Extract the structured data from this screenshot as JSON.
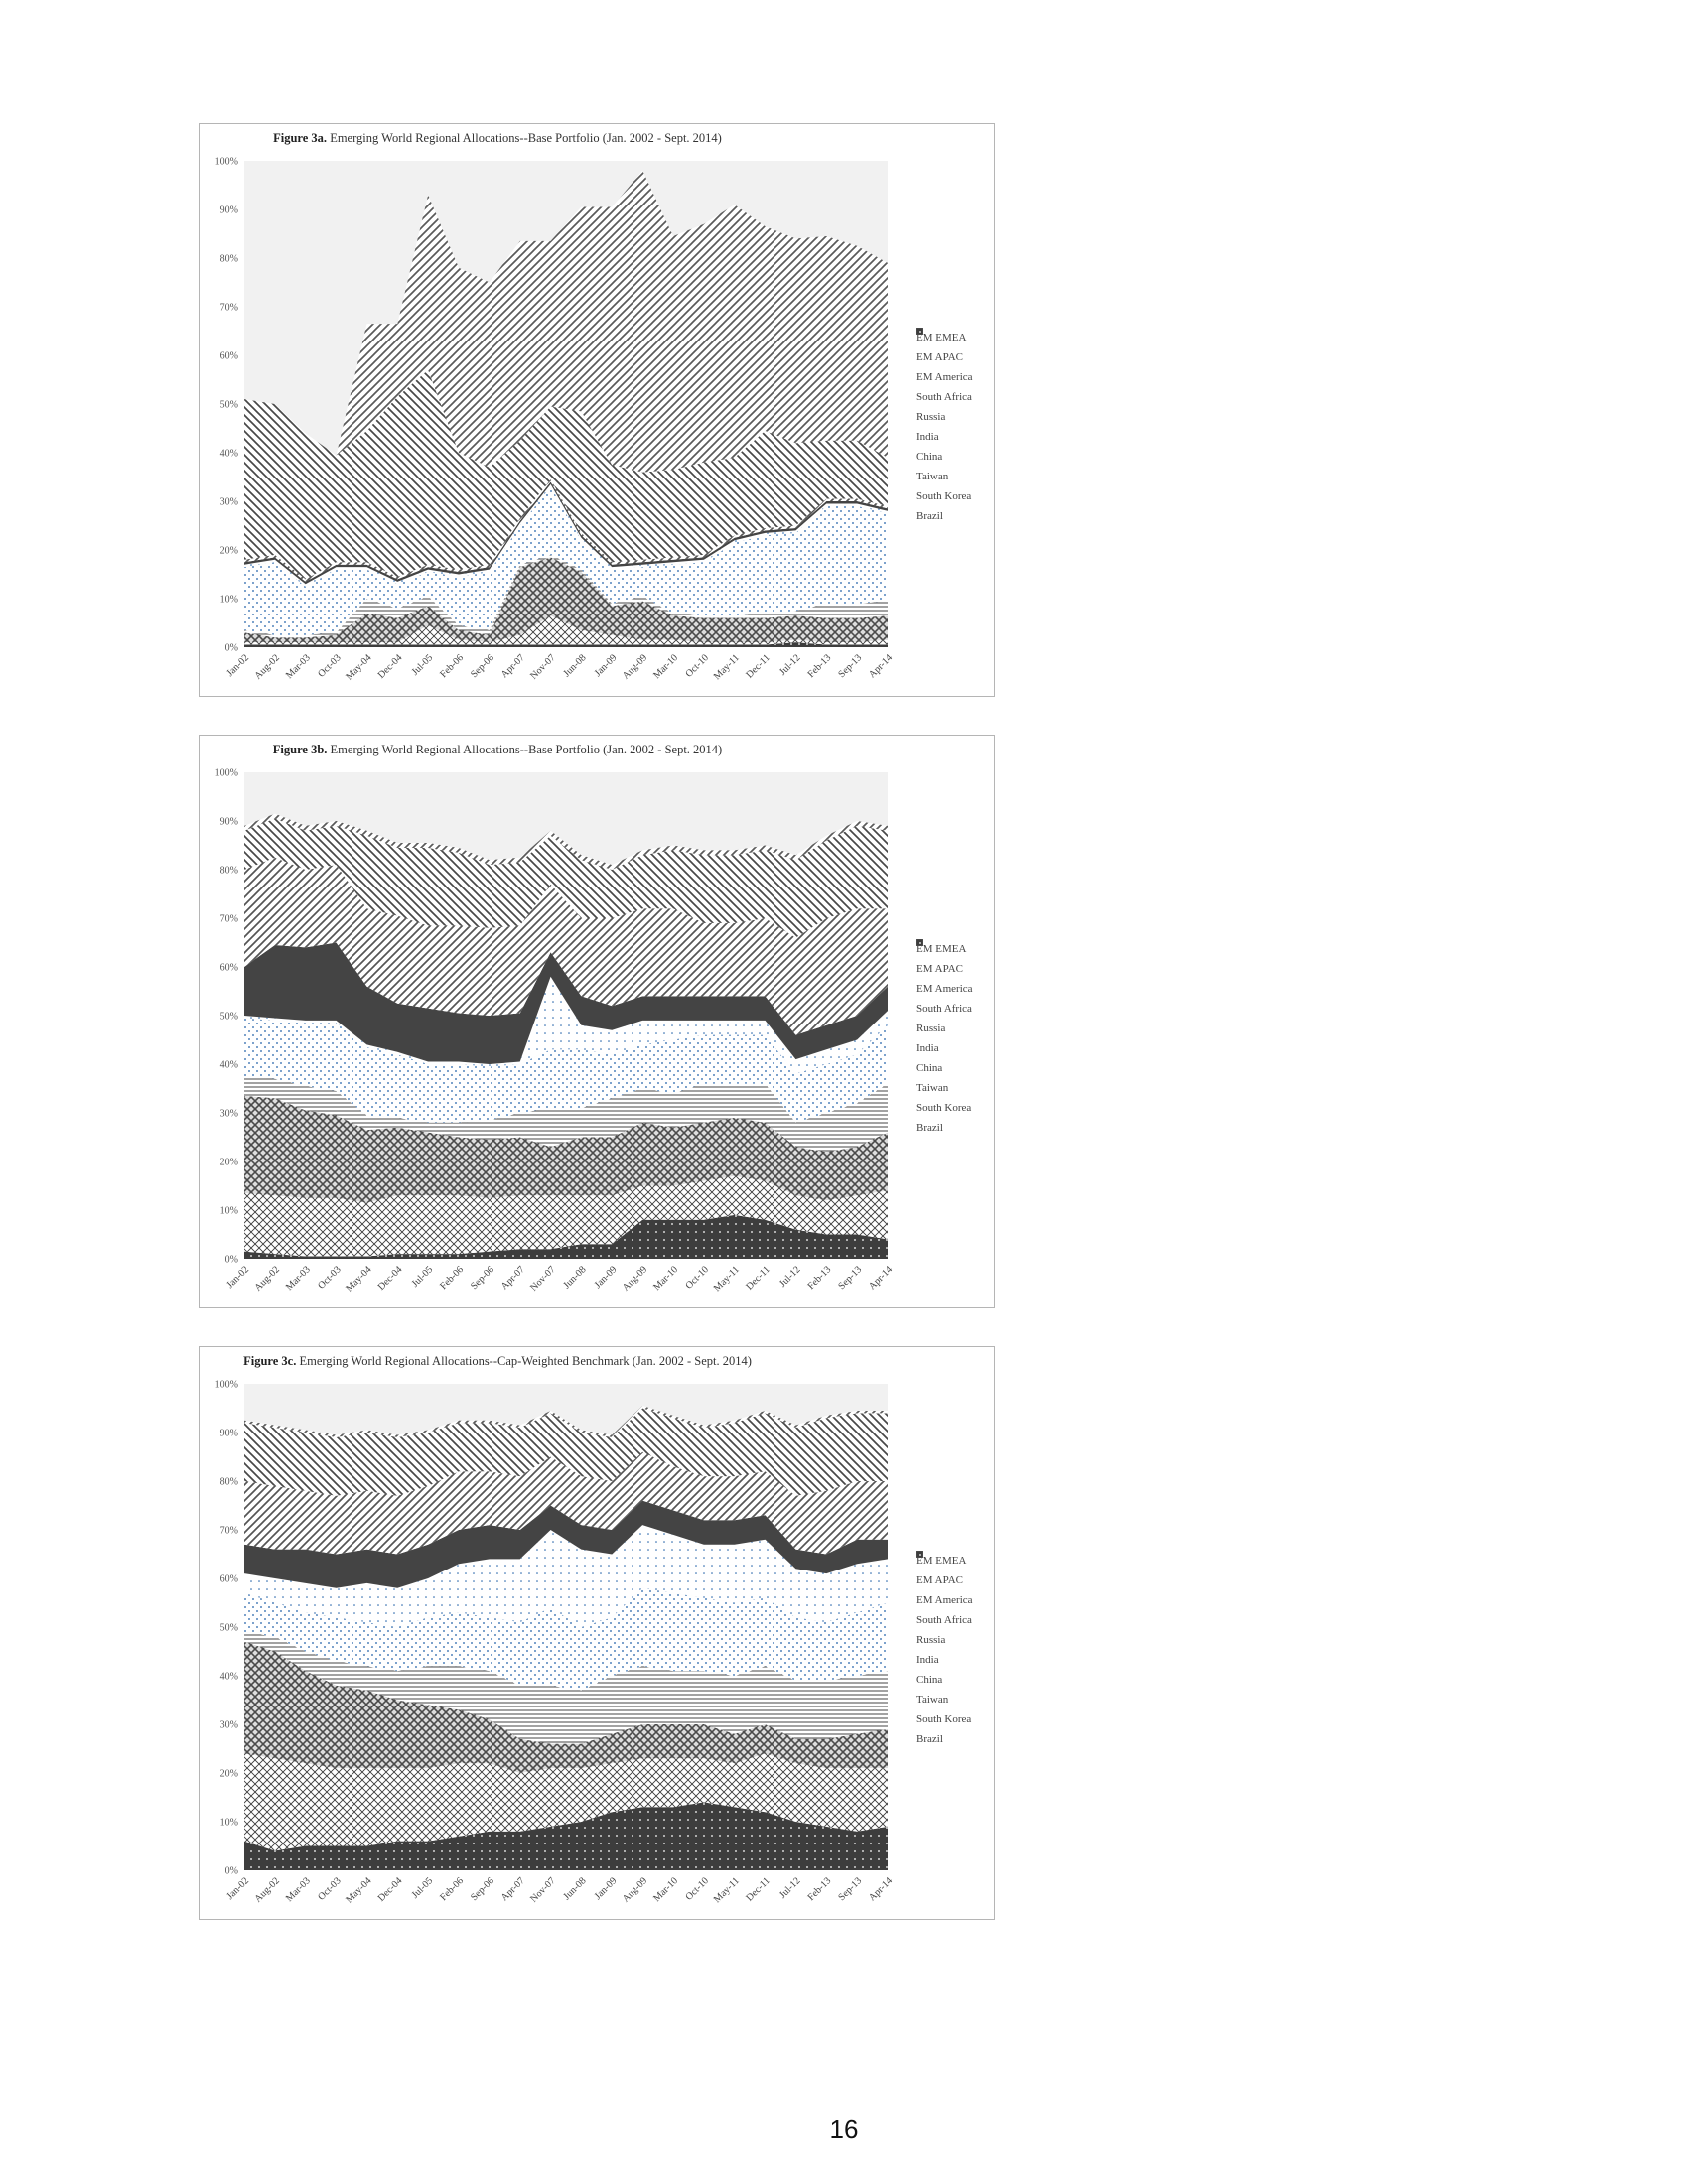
{
  "page_number": "16",
  "chart_data": [
    {
      "id": "3a",
      "type": "area",
      "stacked": true,
      "title_bold": "Figure 3a.",
      "title": "Emerging World Regional Allocations--Base Portfolio (Jan. 2002 - Sept. 2014)",
      "ylim": [
        0,
        100
      ],
      "y_ticks": [
        "0%",
        "10%",
        "20%",
        "30%",
        "40%",
        "50%",
        "60%",
        "70%",
        "80%",
        "90%",
        "100%"
      ],
      "x_tick_labels": [
        "Jan-02",
        "Aug-02",
        "Mar-03",
        "Oct-03",
        "May-04",
        "Dec-04",
        "Jul-05",
        "Feb-06",
        "Sep-06",
        "Apr-07",
        "Nov-07",
        "Jun-08",
        "Jan-09",
        "Aug-09",
        "Mar-10",
        "Oct-10",
        "May-11",
        "Dec-11",
        "Jul-12",
        "Feb-13",
        "Sep-13",
        "Apr-14"
      ],
      "legend_position": "right",
      "legend": [
        "EM EMEA",
        "EM APAC",
        "EM America",
        "South Africa",
        "Russia",
        "India",
        "China",
        "Taiwan",
        "South Korea",
        "Brazil"
      ],
      "series": [
        {
          "name": "Brazil",
          "values": [
            0.5,
            0.5,
            0.5,
            0.5,
            0.5,
            0.5,
            0.5,
            0.5,
            0.5,
            0.5,
            0.5,
            0.5,
            0.5,
            0.5,
            0.5,
            0.5,
            0.5,
            0.5,
            1,
            0.5,
            0.5,
            0.5
          ]
        },
        {
          "name": "South Korea",
          "values": [
            0.5,
            0.5,
            0.5,
            0.5,
            0.5,
            0.5,
            4,
            1,
            0.5,
            2,
            6,
            3,
            2,
            1,
            1,
            0.5,
            0.5,
            0.5,
            0.5,
            0.5,
            0.5,
            1
          ]
        },
        {
          "name": "Taiwan",
          "values": [
            2,
            1,
            1,
            1.5,
            6,
            5,
            4,
            2,
            1.5,
            14,
            12,
            12,
            6,
            8,
            5,
            5,
            5,
            5,
            5,
            5,
            5,
            5
          ]
        },
        {
          "name": "China",
          "values": [
            0.5,
            0.5,
            0.5,
            0.5,
            3,
            2,
            2,
            1,
            1,
            0.5,
            0.5,
            0.5,
            0.5,
            1,
            0.5,
            0.5,
            0.5,
            1,
            1,
            3,
            3,
            3
          ]
        },
        {
          "name": "India",
          "values": [
            13,
            15,
            10,
            13,
            6,
            5,
            5,
            10,
            12,
            8,
            14,
            6,
            7,
            6,
            10,
            11,
            15,
            16,
            16,
            20,
            20,
            18
          ]
        },
        {
          "name": "Russia",
          "values": [
            0.5,
            0.5,
            0.5,
            0.5,
            0.5,
            0.5,
            0.5,
            0.5,
            0.5,
            0.5,
            0.5,
            0.5,
            0.5,
            0.5,
            0.5,
            0.5,
            0.5,
            0.5,
            0.5,
            0.5,
            0.5,
            0.5
          ]
        },
        {
          "name": "South Africa",
          "values": [
            0.5,
            0.5,
            0.5,
            0.5,
            0.5,
            0.5,
            0.5,
            0.5,
            0.5,
            0.5,
            0.5,
            0.5,
            0.5,
            0.5,
            0.5,
            0.5,
            0.5,
            0.5,
            0.5,
            0.5,
            0.5,
            0.5
          ]
        },
        {
          "name": "EM America",
          "values": [
            0.5,
            0.5,
            0.5,
            0.5,
            0.5,
            0.5,
            0.5,
            0.5,
            0.5,
            0.5,
            0.5,
            0.5,
            0.5,
            0.5,
            0.5,
            0.5,
            0.5,
            0.5,
            0.5,
            0.5,
            0.5,
            0.5
          ]
        },
        {
          "name": "EM APAC",
          "values": [
            33,
            31,
            30,
            22,
            27,
            37,
            40,
            24,
            20,
            16,
            15,
            25,
            20,
            18,
            18,
            19,
            16,
            20,
            17,
            12,
            12,
            10
          ]
        },
        {
          "name": "EM EMEA",
          "values": [
            0,
            0,
            0,
            0,
            22,
            15,
            36,
            38,
            38,
            41,
            34,
            42,
            53,
            62,
            48,
            49,
            52,
            42,
            42,
            42,
            40,
            40
          ]
        }
      ]
    },
    {
      "id": "3b",
      "type": "area",
      "stacked": true,
      "title_bold": "Figure 3b.",
      "title": "Emerging World Regional Allocations--Base Portfolio (Jan. 2002 - Sept. 2014)",
      "ylim": [
        0,
        100
      ],
      "y_ticks": [
        "0%",
        "10%",
        "20%",
        "30%",
        "40%",
        "50%",
        "60%",
        "70%",
        "80%",
        "90%",
        "100%"
      ],
      "x_tick_labels": [
        "Jan-02",
        "Aug-02",
        "Mar-03",
        "Oct-03",
        "May-04",
        "Dec-04",
        "Jul-05",
        "Feb-06",
        "Sep-06",
        "Apr-07",
        "Nov-07",
        "Jun-08",
        "Jan-09",
        "Aug-09",
        "Mar-10",
        "Oct-10",
        "May-11",
        "Dec-11",
        "Jul-12",
        "Feb-13",
        "Sep-13",
        "Apr-14"
      ],
      "legend_position": "right",
      "legend": [
        "EM EMEA",
        "EM APAC",
        "EM America",
        "South Africa",
        "Russia",
        "India",
        "China",
        "Taiwan",
        "South Korea",
        "Brazil"
      ],
      "series": [
        {
          "name": "Brazil",
          "values": [
            1.5,
            1,
            0.5,
            0.5,
            0.5,
            1,
            1,
            1,
            1.5,
            2,
            2,
            3,
            3,
            8,
            8,
            8,
            9,
            8,
            6,
            5,
            5,
            4
          ]
        },
        {
          "name": "South Korea",
          "values": [
            12,
            12,
            12,
            12,
            11,
            12,
            12,
            12,
            11,
            11,
            11,
            10,
            10,
            7,
            7,
            8,
            8,
            8,
            7,
            7,
            8,
            10
          ]
        },
        {
          "name": "Taiwan",
          "values": [
            20,
            20,
            18,
            17,
            15,
            14,
            13,
            12,
            12,
            12,
            10,
            12,
            12,
            13,
            12,
            12,
            12,
            12,
            10,
            10,
            10,
            12
          ]
        },
        {
          "name": "China",
          "values": [
            4,
            4,
            5,
            5,
            3,
            2,
            2,
            3,
            4,
            5,
            8,
            6,
            8,
            7,
            7,
            8,
            7,
            8,
            5,
            8,
            9,
            10
          ]
        },
        {
          "name": "India",
          "values": [
            12,
            12,
            13,
            14,
            14,
            13,
            12,
            12,
            11,
            10,
            12,
            12,
            9,
            9,
            11,
            10,
            10,
            10,
            10,
            10,
            10,
            12
          ]
        },
        {
          "name": "Russia",
          "values": [
            0.5,
            0.5,
            0.5,
            0.5,
            0.5,
            0.5,
            0.5,
            0.5,
            0.5,
            0.5,
            15,
            5,
            5,
            5,
            4,
            3,
            3,
            3,
            3,
            3,
            3,
            3
          ]
        },
        {
          "name": "South Africa",
          "values": [
            10,
            15,
            15,
            16,
            12,
            10,
            11,
            10,
            10,
            10,
            5,
            6,
            5,
            5,
            5,
            5,
            5,
            5,
            5,
            5,
            5,
            5
          ]
        },
        {
          "name": "EM America",
          "values": [
            20,
            18,
            16,
            16,
            16,
            18,
            17,
            18,
            18,
            18,
            14,
            16,
            18,
            18,
            18,
            15,
            15,
            16,
            20,
            22,
            22,
            16
          ]
        },
        {
          "name": "EM APAC",
          "values": [
            8,
            8,
            8,
            8,
            15,
            14,
            16,
            15,
            13,
            13,
            10,
            12,
            10,
            11,
            12,
            14,
            14,
            14,
            16,
            16,
            17,
            16
          ]
        },
        {
          "name": "EM EMEA",
          "values": [
            1,
            1,
            1,
            1,
            1,
            1,
            1,
            1,
            1,
            1,
            1,
            1,
            1,
            1,
            1,
            1,
            1,
            1,
            1,
            1,
            1,
            1
          ]
        }
      ]
    },
    {
      "id": "3c",
      "type": "area",
      "stacked": true,
      "title_bold": "Figure 3c.",
      "title": "Emerging World Regional Allocations--Cap-Weighted Benchmark (Jan. 2002 - Sept. 2014)",
      "ylim": [
        0,
        100
      ],
      "y_ticks": [
        "0%",
        "10%",
        "20%",
        "30%",
        "40%",
        "50%",
        "60%",
        "70%",
        "80%",
        "90%",
        "100%"
      ],
      "x_tick_labels": [
        "Jan-02",
        "Aug-02",
        "Mar-03",
        "Oct-03",
        "May-04",
        "Dec-04",
        "Jul-05",
        "Feb-06",
        "Sep-06",
        "Apr-07",
        "Nov-07",
        "Jun-08",
        "Jan-09",
        "Aug-09",
        "Mar-10",
        "Oct-10",
        "May-11",
        "Dec-11",
        "Jul-12",
        "Feb-13",
        "Sep-13",
        "Apr-14"
      ],
      "legend_position": "right",
      "legend": [
        "EM EMEA",
        "EM APAC",
        "EM America",
        "South Africa",
        "Russia",
        "India",
        "China",
        "Taiwan",
        "South Korea",
        "Brazil"
      ],
      "series": [
        {
          "name": "Brazil",
          "values": [
            6,
            4,
            5,
            5,
            5,
            6,
            6,
            7,
            8,
            8,
            9,
            10,
            12,
            13,
            13,
            14,
            13,
            12,
            10,
            9,
            8,
            9
          ]
        },
        {
          "name": "South Korea",
          "values": [
            18,
            19,
            17,
            16,
            16,
            15,
            15,
            15,
            14,
            12,
            12,
            11,
            10,
            10,
            10,
            9,
            9,
            12,
            12,
            12,
            13,
            12
          ]
        },
        {
          "name": "Taiwan",
          "values": [
            23,
            22,
            19,
            17,
            16,
            14,
            13,
            11,
            9,
            7,
            5,
            5,
            6,
            7,
            7,
            7,
            6,
            6,
            5,
            6,
            7,
            8
          ]
        },
        {
          "name": "China",
          "values": [
            2,
            3,
            4,
            5,
            5,
            6,
            8,
            9,
            10,
            11,
            12,
            11,
            12,
            12,
            11,
            11,
            12,
            12,
            12,
            12,
            12,
            12
          ]
        },
        {
          "name": "India",
          "values": [
            8,
            7,
            8,
            9,
            9,
            9,
            10,
            11,
            11,
            13,
            16,
            13,
            12,
            16,
            16,
            15,
            15,
            14,
            13,
            12,
            13,
            14
          ]
        },
        {
          "name": "Russia",
          "values": [
            4,
            5,
            6,
            6,
            8,
            8,
            8,
            10,
            12,
            13,
            16,
            16,
            13,
            13,
            12,
            11,
            12,
            12,
            10,
            10,
            10,
            9
          ]
        },
        {
          "name": "South Africa",
          "values": [
            6,
            6,
            7,
            7,
            7,
            7,
            7,
            7,
            7,
            6,
            5,
            5,
            5,
            5,
            5,
            5,
            5,
            5,
            4,
            4,
            5,
            4
          ]
        },
        {
          "name": "EM America",
          "values": [
            13,
            13,
            12,
            12,
            12,
            12,
            12,
            12,
            11,
            11,
            10,
            10,
            10,
            10,
            9,
            9,
            9,
            9,
            11,
            13,
            12,
            12
          ]
        },
        {
          "name": "EM APAC",
          "values": [
            12,
            12,
            12,
            12,
            12,
            12,
            11,
            10,
            10,
            10,
            9,
            9,
            9,
            9,
            10,
            10,
            11,
            12,
            14,
            15,
            14,
            14
          ]
        },
        {
          "name": "EM EMEA",
          "values": [
            0.5,
            0.5,
            0.5,
            0.5,
            0.5,
            0.5,
            0.5,
            0.5,
            0.5,
            0.5,
            0.5,
            0.5,
            0.5,
            0.5,
            0.5,
            0.5,
            0.5,
            0.5,
            0.5,
            0.5,
            0.5,
            0.5
          ]
        }
      ]
    }
  ]
}
